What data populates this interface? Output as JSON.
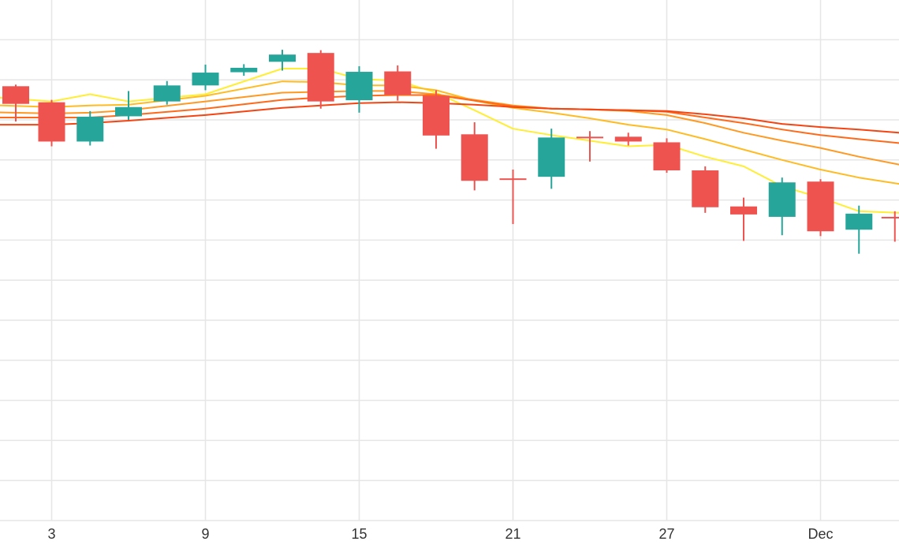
{
  "chart_data": {
    "type": "candlestick",
    "title": "",
    "xlabel": "",
    "ylabel": "",
    "x_tick_labels": [
      {
        "day": 3,
        "label": "3"
      },
      {
        "day": 9,
        "label": "9"
      },
      {
        "day": 15,
        "label": "15"
      },
      {
        "day": 21,
        "label": "21"
      },
      {
        "day": 27,
        "label": "27"
      },
      {
        "day": 33,
        "label": "Dec"
      }
    ],
    "x_range": [
      1,
      36.1
    ],
    "y_range_px_note": "",
    "y_range": [
      0,
      130
    ],
    "grid": true,
    "legend": "none",
    "colors": {
      "up": "#26a69a",
      "down": "#ef5350",
      "grid": "#e6e6e6",
      "ma_series": [
        "#ffee33",
        "#ffbb22",
        "#ff9922",
        "#ff6a1a",
        "#f44411"
      ]
    },
    "candles": [
      {
        "day": 1.6,
        "open": 108.4,
        "high": 108.8,
        "low": 99.6,
        "close": 104.0
      },
      {
        "day": 3.0,
        "open": 104.4,
        "high": 105.0,
        "low": 93.4,
        "close": 94.6
      },
      {
        "day": 4.5,
        "open": 94.6,
        "high": 102.2,
        "low": 93.6,
        "close": 100.8
      },
      {
        "day": 6.0,
        "open": 100.9,
        "high": 107.2,
        "low": 100.0,
        "close": 103.2
      },
      {
        "day": 7.5,
        "open": 104.6,
        "high": 109.7,
        "low": 103.8,
        "close": 108.6
      },
      {
        "day": 9.0,
        "open": 108.6,
        "high": 113.8,
        "low": 107.4,
        "close": 111.8
      },
      {
        "day": 10.5,
        "open": 111.9,
        "high": 113.9,
        "low": 111.0,
        "close": 113.0
      },
      {
        "day": 12.0,
        "open": 114.5,
        "high": 117.5,
        "low": 112.3,
        "close": 116.3
      },
      {
        "day": 13.5,
        "open": 116.7,
        "high": 117.4,
        "low": 102.8,
        "close": 104.6
      },
      {
        "day": 15.0,
        "open": 104.9,
        "high": 113.4,
        "low": 101.8,
        "close": 112.0
      },
      {
        "day": 16.5,
        "open": 112.1,
        "high": 113.6,
        "low": 104.8,
        "close": 106.3
      },
      {
        "day": 18.0,
        "open": 106.0,
        "high": 107.4,
        "low": 92.8,
        "close": 96.1
      },
      {
        "day": 19.5,
        "open": 96.4,
        "high": 99.4,
        "low": 82.4,
        "close": 84.8
      },
      {
        "day": 21.0,
        "open": 85.4,
        "high": 87.6,
        "low": 74.0,
        "close": 85.4
      },
      {
        "day": 22.5,
        "open": 85.8,
        "high": 97.8,
        "low": 82.8,
        "close": 95.6
      },
      {
        "day": 24.0,
        "open": 95.8,
        "high": 97.2,
        "low": 89.6,
        "close": 95.8
      },
      {
        "day": 25.5,
        "open": 95.8,
        "high": 96.8,
        "low": 93.6,
        "close": 94.6
      },
      {
        "day": 27.0,
        "open": 94.4,
        "high": 95.4,
        "low": 86.8,
        "close": 87.4
      },
      {
        "day": 28.5,
        "open": 87.4,
        "high": 88.4,
        "low": 76.8,
        "close": 78.2
      },
      {
        "day": 30.0,
        "open": 78.4,
        "high": 80.6,
        "low": 69.8,
        "close": 76.4
      },
      {
        "day": 31.5,
        "open": 75.8,
        "high": 85.6,
        "low": 71.2,
        "close": 84.4
      },
      {
        "day": 33.0,
        "open": 84.6,
        "high": 85.2,
        "low": 71.0,
        "close": 72.2
      },
      {
        "day": 34.5,
        "open": 72.6,
        "high": 78.6,
        "low": 66.6,
        "close": 76.6
      },
      {
        "day": 35.9,
        "open": 75.8,
        "high": 77.2,
        "low": 69.6,
        "close": 75.8
      }
    ],
    "series": [
      {
        "values": [
          [
            0,
            106.0
          ],
          [
            3.0,
            104.6
          ],
          [
            4.5,
            106.4
          ],
          [
            6.0,
            104.6
          ],
          [
            9.0,
            106.4
          ],
          [
            12.0,
            112.8
          ],
          [
            13.5,
            112.8
          ],
          [
            15.0,
            110.2
          ],
          [
            16.5,
            109.8
          ],
          [
            18.0,
            106.8
          ],
          [
            19.5,
            102.4
          ],
          [
            21.0,
            97.8
          ],
          [
            22.5,
            96.2
          ],
          [
            24.0,
            94.8
          ],
          [
            25.5,
            93.4
          ],
          [
            27.0,
            93.8
          ],
          [
            28.5,
            90.8
          ],
          [
            30.0,
            88.4
          ],
          [
            31.5,
            83.4
          ],
          [
            33.0,
            80.6
          ],
          [
            34.5,
            77.2
          ],
          [
            36.1,
            76.8
          ]
        ]
      },
      {
        "values": [
          [
            0,
            103.8
          ],
          [
            3.0,
            103.2
          ],
          [
            4.5,
            103.6
          ],
          [
            6.0,
            103.8
          ],
          [
            9.0,
            106.0
          ],
          [
            12.0,
            109.6
          ],
          [
            13.5,
            109.4
          ],
          [
            15.0,
            108.6
          ],
          [
            16.5,
            108.6
          ],
          [
            18.0,
            107.4
          ],
          [
            19.5,
            104.8
          ],
          [
            21.0,
            103.0
          ],
          [
            22.5,
            101.8
          ],
          [
            24.0,
            100.4
          ],
          [
            25.5,
            98.8
          ],
          [
            27.0,
            97.6
          ],
          [
            28.5,
            95.2
          ],
          [
            30.0,
            92.6
          ],
          [
            31.5,
            90.0
          ],
          [
            33.0,
            87.6
          ],
          [
            34.5,
            85.6
          ],
          [
            36.1,
            84.0
          ]
        ]
      },
      {
        "values": [
          [
            0,
            102.0
          ],
          [
            3.0,
            101.6
          ],
          [
            4.5,
            101.8
          ],
          [
            6.0,
            102.4
          ],
          [
            9.0,
            104.6
          ],
          [
            12.0,
            106.8
          ],
          [
            13.5,
            107.0
          ],
          [
            15.0,
            107.2
          ],
          [
            16.5,
            107.2
          ],
          [
            18.0,
            106.4
          ],
          [
            19.5,
            105.0
          ],
          [
            21.0,
            103.6
          ],
          [
            22.5,
            102.8
          ],
          [
            24.0,
            102.6
          ],
          [
            25.5,
            102.2
          ],
          [
            27.0,
            101.2
          ],
          [
            28.5,
            99.2
          ],
          [
            30.0,
            96.8
          ],
          [
            31.5,
            94.8
          ],
          [
            33.0,
            93.0
          ],
          [
            34.5,
            90.8
          ],
          [
            36.1,
            88.8
          ]
        ]
      },
      {
        "values": [
          [
            0,
            100.6
          ],
          [
            3.0,
            100.6
          ],
          [
            4.5,
            100.6
          ],
          [
            6.0,
            101.2
          ],
          [
            9.0,
            102.8
          ],
          [
            12.0,
            105.0
          ],
          [
            13.5,
            105.6
          ],
          [
            15.0,
            106.0
          ],
          [
            16.5,
            106.2
          ],
          [
            18.0,
            106.2
          ],
          [
            19.5,
            104.8
          ],
          [
            21.0,
            103.4
          ],
          [
            22.5,
            102.8
          ],
          [
            24.0,
            102.6
          ],
          [
            25.5,
            102.4
          ],
          [
            27.0,
            102.0
          ],
          [
            28.5,
            100.6
          ],
          [
            30.0,
            99.2
          ],
          [
            31.5,
            97.6
          ],
          [
            33.0,
            96.2
          ],
          [
            34.5,
            95.2
          ],
          [
            36.1,
            94.2
          ]
        ]
      },
      {
        "values": [
          [
            0,
            98.8
          ],
          [
            3.0,
            98.8
          ],
          [
            4.5,
            99.2
          ],
          [
            6.0,
            99.8
          ],
          [
            9.0,
            101.2
          ],
          [
            12.0,
            103.0
          ],
          [
            13.5,
            103.6
          ],
          [
            15.0,
            104.2
          ],
          [
            16.5,
            104.4
          ],
          [
            18.0,
            104.2
          ],
          [
            19.5,
            103.8
          ],
          [
            21.0,
            103.2
          ],
          [
            22.5,
            102.8
          ],
          [
            24.0,
            102.6
          ],
          [
            25.5,
            102.4
          ],
          [
            27.0,
            102.2
          ],
          [
            28.5,
            101.4
          ],
          [
            30.0,
            100.4
          ],
          [
            31.5,
            99.0
          ],
          [
            33.0,
            98.2
          ],
          [
            34.5,
            97.6
          ],
          [
            36.1,
            96.8
          ]
        ]
      }
    ]
  }
}
